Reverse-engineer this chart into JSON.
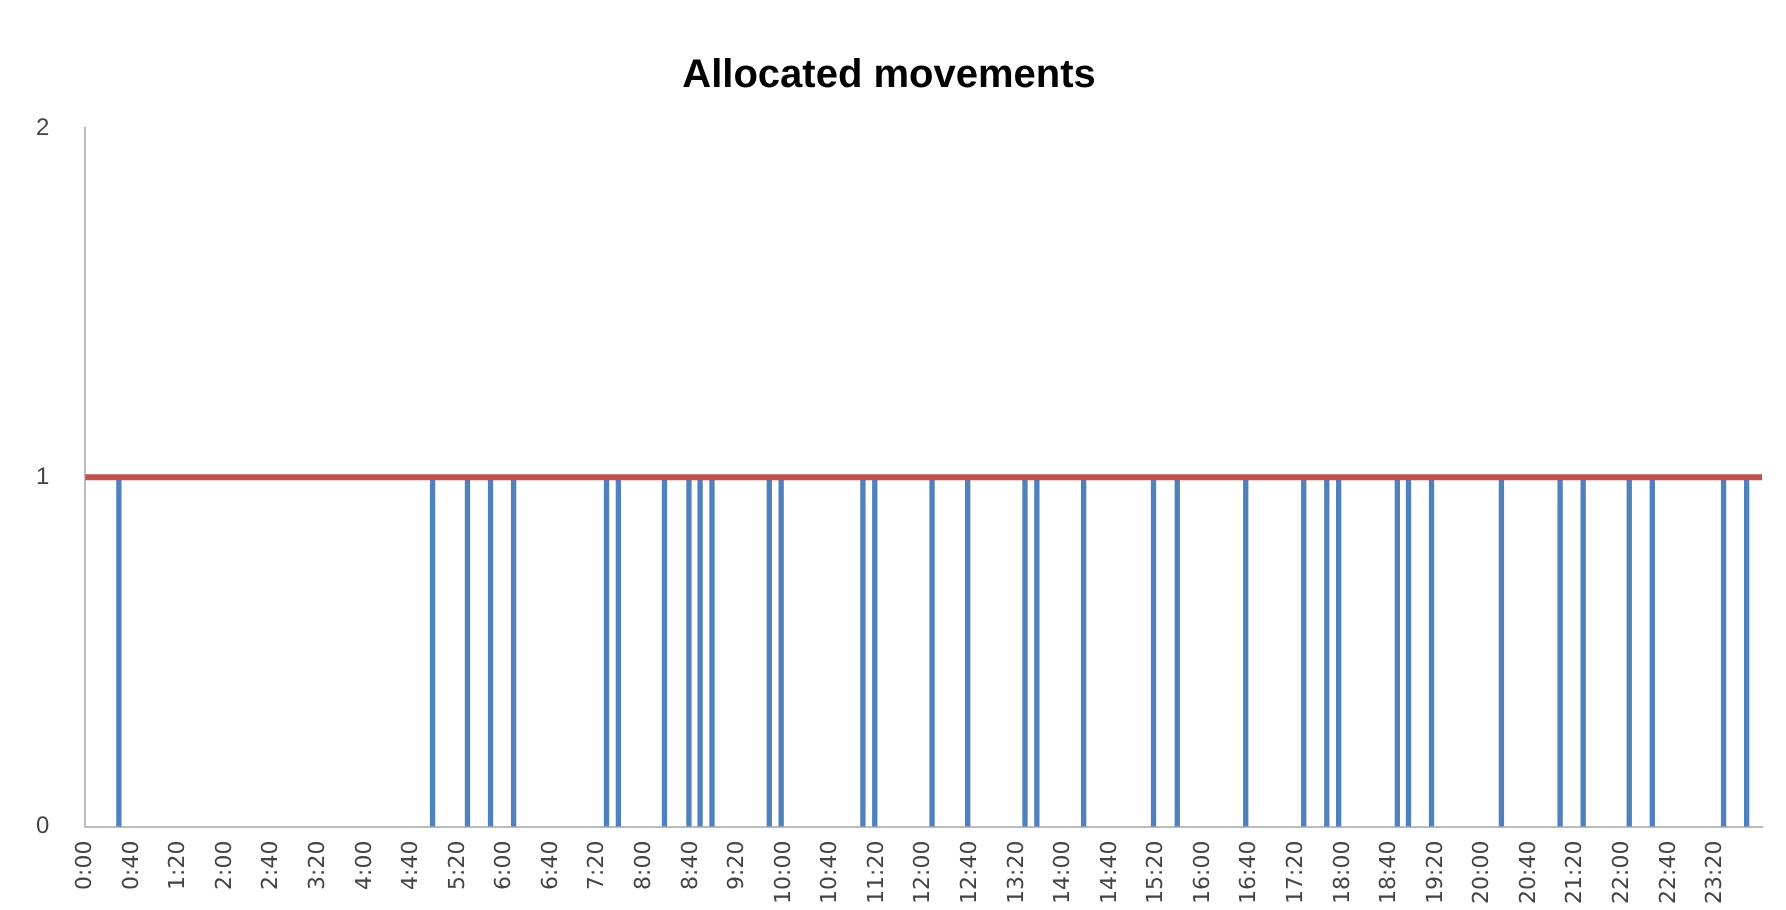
{
  "chart_data": {
    "type": "bar",
    "title": "Allocated movements",
    "x": [
      0.48,
      4.97,
      5.47,
      5.8,
      6.13,
      7.46,
      7.63,
      8.29,
      8.64,
      8.8,
      8.97,
      9.79,
      9.96,
      11.13,
      11.3,
      12.12,
      12.63,
      13.45,
      13.62,
      14.29,
      15.29,
      15.63,
      16.61,
      17.44,
      17.77,
      17.94,
      18.78,
      18.94,
      19.27,
      20.27,
      21.11,
      21.44,
      22.1,
      22.43,
      23.45,
      23.78
    ],
    "values": [
      1,
      1,
      1,
      1,
      1,
      1,
      1,
      1,
      1,
      1,
      1,
      1,
      1,
      1,
      1,
      1,
      1,
      1,
      1,
      1,
      1,
      1,
      1,
      1,
      1,
      1,
      1,
      1,
      1,
      1,
      1,
      1,
      1,
      1,
      1,
      1
    ],
    "color": "#4f81bd",
    "xlim": [
      0,
      24
    ],
    "xticks": [
      {
        "value": 0,
        "label": "0:00"
      },
      {
        "value": 0.6667,
        "label": "0:40"
      },
      {
        "value": 1.3333,
        "label": "1:20"
      },
      {
        "value": 2,
        "label": "2:00"
      },
      {
        "value": 2.6667,
        "label": "2:40"
      },
      {
        "value": 3.3333,
        "label": "3:20"
      },
      {
        "value": 4,
        "label": "4:00"
      },
      {
        "value": 4.6667,
        "label": "4:40"
      },
      {
        "value": 5.3333,
        "label": "5:20"
      },
      {
        "value": 6,
        "label": "6:00"
      },
      {
        "value": 6.6667,
        "label": "6:40"
      },
      {
        "value": 7.3333,
        "label": "7:20"
      },
      {
        "value": 8,
        "label": "8:00"
      },
      {
        "value": 8.6667,
        "label": "8:40"
      },
      {
        "value": 9.3333,
        "label": "9:20"
      },
      {
        "value": 10,
        "label": "10:00"
      },
      {
        "value": 10.6667,
        "label": "10:40"
      },
      {
        "value": 11.3333,
        "label": "11:20"
      },
      {
        "value": 12,
        "label": "12:00"
      },
      {
        "value": 12.6667,
        "label": "12:40"
      },
      {
        "value": 13.3333,
        "label": "13:20"
      },
      {
        "value": 14,
        "label": "14:00"
      },
      {
        "value": 14.6667,
        "label": "14:40"
      },
      {
        "value": 15.3333,
        "label": "15:20"
      },
      {
        "value": 16,
        "label": "16:00"
      },
      {
        "value": 16.6667,
        "label": "16:40"
      },
      {
        "value": 17.3333,
        "label": "17:20"
      },
      {
        "value": 18,
        "label": "18:00"
      },
      {
        "value": 18.6667,
        "label": "18:40"
      },
      {
        "value": 19.3333,
        "label": "19:20"
      },
      {
        "value": 20,
        "label": "20:00"
      },
      {
        "value": 20.6667,
        "label": "20:40"
      },
      {
        "value": 21.3333,
        "label": "21:20"
      },
      {
        "value": 22,
        "label": "22:00"
      },
      {
        "value": 22.6667,
        "label": "22:40"
      },
      {
        "value": 23.3333,
        "label": "23:20"
      }
    ],
    "ylim": [
      0,
      2
    ],
    "yticks": [
      0,
      1,
      2
    ],
    "grid": false,
    "ref_lines": [
      {
        "axis": "y",
        "value": 1,
        "color": "#c0504d"
      }
    ]
  }
}
